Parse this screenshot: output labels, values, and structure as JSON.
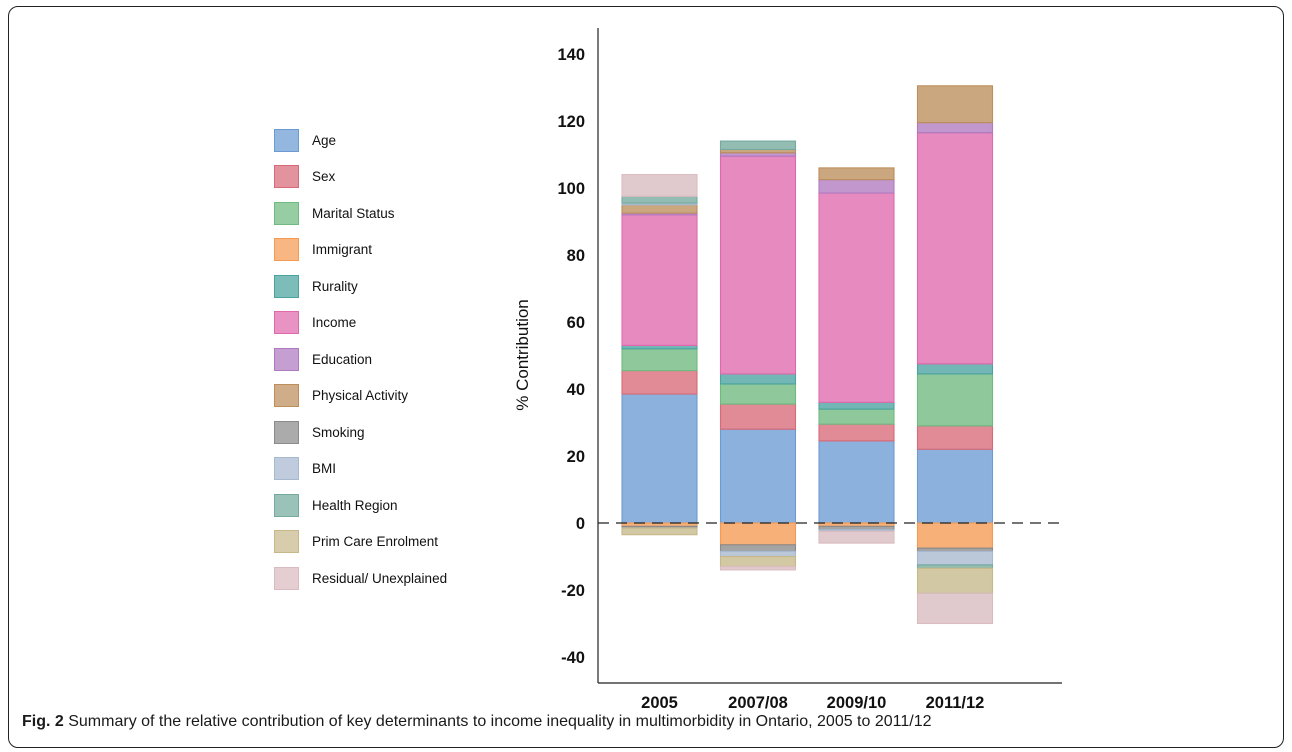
{
  "caption": {
    "label": "Fig. 2",
    "text": "Summary of the relative contribution of key determinants to income inequality in multimorbidity in Ontario, 2005 to 2011/12"
  },
  "chart_data": {
    "type": "bar",
    "stacked": true,
    "title": "",
    "xlabel": "",
    "ylabel": "% Contribution",
    "ylim": [
      -45,
      145
    ],
    "yticks": [
      -40,
      -20,
      0,
      20,
      40,
      60,
      80,
      100,
      120,
      140
    ],
    "ytick_labels": [
      "-40",
      "-20",
      "0",
      "20",
      "40",
      "60",
      "80",
      "100",
      "120",
      "140"
    ],
    "categories": [
      "2005",
      "2007/08",
      "2009/10",
      "2011/12"
    ],
    "zero_line": "dashed",
    "grid": false,
    "legend_placement": "left",
    "series": [
      {
        "name": "Age",
        "color": "#6b9bd2",
        "values": [
          38.5,
          28,
          24.5,
          22
        ]
      },
      {
        "name": "Sex",
        "color": "#d86a78",
        "values": [
          7,
          7.5,
          5,
          7
        ]
      },
      {
        "name": "Marital Status",
        "color": "#6fba7f",
        "values": [
          6.5,
          6,
          4.5,
          15.5
        ]
      },
      {
        "name": "Immigrant",
        "color": "#f59a52",
        "values": [
          -1,
          -6.5,
          -1,
          -7.5
        ]
      },
      {
        "name": "Rurality",
        "color": "#4aa3a0",
        "values": [
          1,
          3,
          2,
          3
        ]
      },
      {
        "name": "Income",
        "color": "#e069ae",
        "values": [
          39,
          65,
          62.5,
          69
        ]
      },
      {
        "name": "Education",
        "color": "#b07ac0",
        "values": [
          0.5,
          1,
          4,
          3
        ]
      },
      {
        "name": "Physical Activity",
        "color": "#bc8e5c",
        "values": [
          2.5,
          1,
          3.5,
          11
        ]
      },
      {
        "name": "Smoking",
        "color": "#8b8b8b",
        "values": [
          -0.5,
          -2,
          -1,
          -1
        ]
      },
      {
        "name": "BMI",
        "color": "#a7b9d0",
        "values": [
          0.5,
          -1.5,
          -0.5,
          -4
        ]
      },
      {
        "name": "Health Region",
        "color": "#75aa9e",
        "values": [
          2,
          2.5,
          0,
          -1
        ]
      },
      {
        "name": "Prim Care Enrolment",
        "color": "#c7b88a",
        "values": [
          -2,
          -3,
          0,
          -7.5
        ]
      },
      {
        "name": "Residual/ Unexplained",
        "color": "#d9bbc0",
        "values": [
          6.5,
          -1,
          -3.5,
          -9
        ]
      }
    ]
  }
}
